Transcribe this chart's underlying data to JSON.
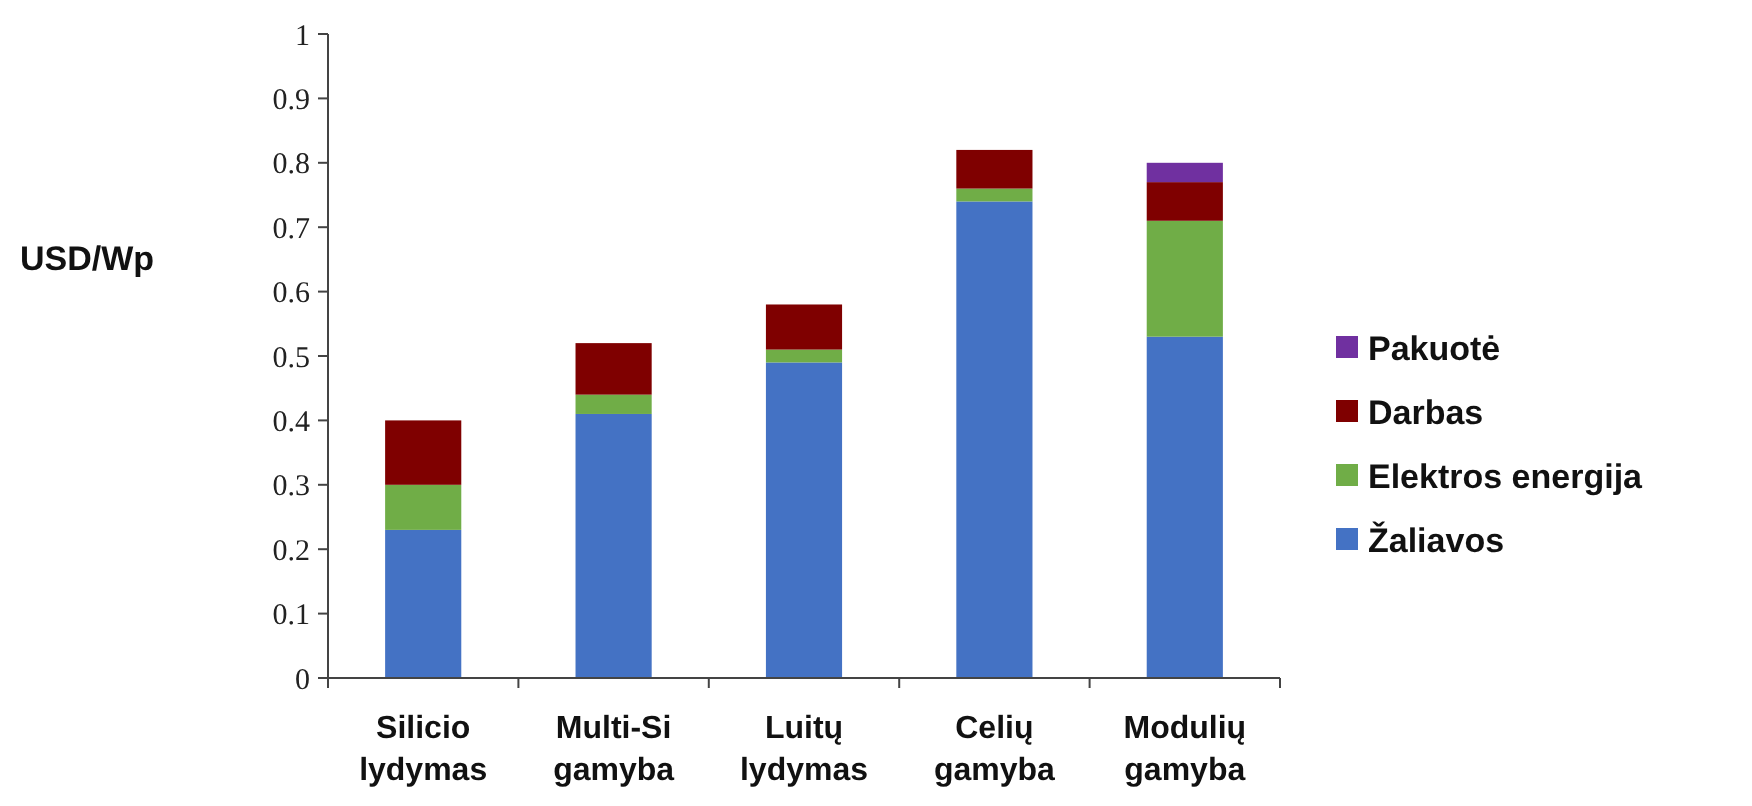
{
  "chart_data": {
    "type": "bar",
    "stacked": true,
    "ylabel": "USD/Wp",
    "categories": [
      "Silicio lydymas",
      "Multi-Si gamyba",
      "Luitų lydymas",
      "Celių gamyba",
      "Modulių gamyba"
    ],
    "series": [
      {
        "name": "Žaliavos",
        "color": "#4472c4",
        "values": [
          0.23,
          0.41,
          0.49,
          0.74,
          0.53
        ]
      },
      {
        "name": "Elektros energija",
        "color": "#70ad47",
        "values": [
          0.07,
          0.03,
          0.02,
          0.02,
          0.18
        ]
      },
      {
        "name": "Darbas",
        "color": "#7f0000",
        "values": [
          0.1,
          0.08,
          0.07,
          0.06,
          0.06
        ]
      },
      {
        "name": "Pakuotė",
        "color": "#7030a0",
        "values": [
          null,
          null,
          null,
          null,
          0.03
        ]
      }
    ],
    "ylim": [
      0,
      1
    ],
    "yticks": [
      0,
      0.1,
      0.2,
      0.3,
      0.4,
      0.5,
      0.6,
      0.7,
      0.8,
      0.9,
      1
    ],
    "grid": false,
    "legend": "right"
  }
}
